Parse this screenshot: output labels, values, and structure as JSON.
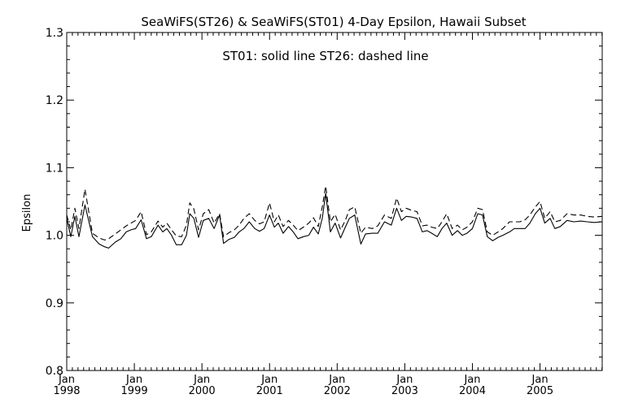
{
  "chart_data": {
    "type": "line",
    "title": "SeaWiFS(ST26) & SeaWiFS(ST01) 4-Day Epsilon, Hawaii Subset",
    "annotation": "ST01: solid line   ST26: dashed line",
    "xlabel": "",
    "ylabel": "Epsilon",
    "ylim": [
      0.8,
      1.3
    ],
    "xlim": [
      1998.0,
      2005.92
    ],
    "yticks": [
      "0.8",
      "0.9",
      "1.0",
      "1.1",
      "1.2",
      "1.3"
    ],
    "xticks": [
      {
        "month": "Jan",
        "year": "1998",
        "value": 1998
      },
      {
        "month": "Jan",
        "year": "1999",
        "value": 1999
      },
      {
        "month": "Jan",
        "year": "2000",
        "value": 2000
      },
      {
        "month": "Jan",
        "year": "2001",
        "value": 2001
      },
      {
        "month": "Jan",
        "year": "2002",
        "value": 2002
      },
      {
        "month": "Jan",
        "year": "2003",
        "value": 2003
      },
      {
        "month": "Jan",
        "year": "2004",
        "value": 2004
      },
      {
        "month": "Jan",
        "year": "2005",
        "value": 2005
      }
    ],
    "grid": false,
    "series": [
      {
        "name": "ST01",
        "style": "solid",
        "points": [
          [
            1998.0,
            1.025
          ],
          [
            1998.06,
            0.998
          ],
          [
            1998.12,
            1.028
          ],
          [
            1998.18,
            0.998
          ],
          [
            1998.27,
            1.045
          ],
          [
            1998.38,
            0.998
          ],
          [
            1998.48,
            0.987
          ],
          [
            1998.56,
            0.983
          ],
          [
            1998.62,
            0.981
          ],
          [
            1998.72,
            0.99
          ],
          [
            1998.8,
            0.995
          ],
          [
            1998.88,
            1.005
          ],
          [
            1998.95,
            1.008
          ],
          [
            1999.02,
            1.01
          ],
          [
            1999.1,
            1.023
          ],
          [
            1999.18,
            0.995
          ],
          [
            1999.25,
            0.998
          ],
          [
            1999.35,
            1.015
          ],
          [
            1999.42,
            1.005
          ],
          [
            1999.48,
            1.01
          ],
          [
            1999.55,
            1.0
          ],
          [
            1999.62,
            0.986
          ],
          [
            1999.7,
            0.986
          ],
          [
            1999.77,
            1.0
          ],
          [
            1999.82,
            1.032
          ],
          [
            1999.88,
            1.025
          ],
          [
            1999.95,
            0.997
          ],
          [
            2000.02,
            1.022
          ],
          [
            2000.1,
            1.025
          ],
          [
            2000.18,
            1.01
          ],
          [
            2000.26,
            1.03
          ],
          [
            2000.32,
            0.988
          ],
          [
            2000.4,
            0.994
          ],
          [
            2000.48,
            0.997
          ],
          [
            2000.55,
            1.005
          ],
          [
            2000.62,
            1.01
          ],
          [
            2000.7,
            1.02
          ],
          [
            2000.78,
            1.01
          ],
          [
            2000.85,
            1.006
          ],
          [
            2000.92,
            1.01
          ],
          [
            2001.0,
            1.03
          ],
          [
            2001.07,
            1.012
          ],
          [
            2001.13,
            1.018
          ],
          [
            2001.2,
            1.003
          ],
          [
            2001.28,
            1.013
          ],
          [
            2001.35,
            1.005
          ],
          [
            2001.42,
            0.995
          ],
          [
            2001.5,
            0.998
          ],
          [
            2001.58,
            1.0
          ],
          [
            2001.65,
            1.012
          ],
          [
            2001.72,
            1.002
          ],
          [
            2001.78,
            1.025
          ],
          [
            2001.83,
            1.062
          ],
          [
            2001.9,
            1.005
          ],
          [
            2001.97,
            1.018
          ],
          [
            2002.05,
            0.996
          ],
          [
            2002.12,
            1.012
          ],
          [
            2002.18,
            1.025
          ],
          [
            2002.26,
            1.03
          ],
          [
            2002.35,
            0.987
          ],
          [
            2002.42,
            1.002
          ],
          [
            2002.52,
            1.003
          ],
          [
            2002.6,
            1.003
          ],
          [
            2002.7,
            1.02
          ],
          [
            2002.8,
            1.015
          ],
          [
            2002.88,
            1.04
          ],
          [
            2002.95,
            1.022
          ],
          [
            2003.02,
            1.028
          ],
          [
            2003.1,
            1.027
          ],
          [
            2003.18,
            1.025
          ],
          [
            2003.26,
            1.005
          ],
          [
            2003.33,
            1.007
          ],
          [
            2003.4,
            1.003
          ],
          [
            2003.48,
            0.998
          ],
          [
            2003.55,
            1.01
          ],
          [
            2003.62,
            1.018
          ],
          [
            2003.7,
            1.0
          ],
          [
            2003.78,
            1.007
          ],
          [
            2003.85,
            1.0
          ],
          [
            2003.92,
            1.003
          ],
          [
            2004.0,
            1.01
          ],
          [
            2004.08,
            1.032
          ],
          [
            2004.15,
            1.03
          ],
          [
            2004.22,
            0.998
          ],
          [
            2004.3,
            0.992
          ],
          [
            2004.38,
            0.997
          ],
          [
            2004.45,
            1.0
          ],
          [
            2004.55,
            1.005
          ],
          [
            2004.62,
            1.01
          ],
          [
            2004.7,
            1.01
          ],
          [
            2004.78,
            1.01
          ],
          [
            2004.85,
            1.018
          ],
          [
            2004.93,
            1.032
          ],
          [
            2005.0,
            1.04
          ],
          [
            2005.07,
            1.018
          ],
          [
            2005.15,
            1.025
          ],
          [
            2005.22,
            1.01
          ],
          [
            2005.3,
            1.013
          ],
          [
            2005.4,
            1.022
          ],
          [
            2005.5,
            1.02
          ],
          [
            2005.6,
            1.021
          ],
          [
            2005.7,
            1.02
          ],
          [
            2005.8,
            1.019
          ],
          [
            2005.92,
            1.02
          ]
        ]
      },
      {
        "name": "ST26",
        "style": "dashed",
        "points": [
          [
            1998.0,
            1.03
          ],
          [
            1998.06,
            1.008
          ],
          [
            1998.12,
            1.04
          ],
          [
            1998.18,
            1.01
          ],
          [
            1998.27,
            1.068
          ],
          [
            1998.38,
            1.003
          ],
          [
            1998.48,
            0.996
          ],
          [
            1998.56,
            0.993
          ],
          [
            1998.62,
            0.995
          ],
          [
            1998.72,
            1.002
          ],
          [
            1998.8,
            1.008
          ],
          [
            1998.88,
            1.014
          ],
          [
            1998.95,
            1.018
          ],
          [
            1999.02,
            1.022
          ],
          [
            1999.1,
            1.035
          ],
          [
            1999.18,
            1.001
          ],
          [
            1999.25,
            1.005
          ],
          [
            1999.35,
            1.021
          ],
          [
            1999.42,
            1.012
          ],
          [
            1999.48,
            1.018
          ],
          [
            1999.55,
            1.008
          ],
          [
            1999.62,
            0.999
          ],
          [
            1999.7,
            0.998
          ],
          [
            1999.77,
            1.015
          ],
          [
            1999.82,
            1.048
          ],
          [
            1999.88,
            1.039
          ],
          [
            1999.95,
            1.008
          ],
          [
            2000.02,
            1.032
          ],
          [
            2000.1,
            1.038
          ],
          [
            2000.18,
            1.018
          ],
          [
            2000.26,
            1.032
          ],
          [
            2000.32,
            0.998
          ],
          [
            2000.4,
            1.004
          ],
          [
            2000.48,
            1.008
          ],
          [
            2000.55,
            1.015
          ],
          [
            2000.62,
            1.025
          ],
          [
            2000.7,
            1.032
          ],
          [
            2000.78,
            1.022
          ],
          [
            2000.85,
            1.017
          ],
          [
            2000.92,
            1.02
          ],
          [
            2001.0,
            1.048
          ],
          [
            2001.07,
            1.02
          ],
          [
            2001.13,
            1.03
          ],
          [
            2001.2,
            1.013
          ],
          [
            2001.28,
            1.022
          ],
          [
            2001.35,
            1.015
          ],
          [
            2001.42,
            1.007
          ],
          [
            2001.5,
            1.012
          ],
          [
            2001.58,
            1.018
          ],
          [
            2001.65,
            1.026
          ],
          [
            2001.72,
            1.013
          ],
          [
            2001.78,
            1.042
          ],
          [
            2001.83,
            1.073
          ],
          [
            2001.9,
            1.02
          ],
          [
            2001.97,
            1.031
          ],
          [
            2002.05,
            1.008
          ],
          [
            2002.12,
            1.022
          ],
          [
            2002.18,
            1.038
          ],
          [
            2002.26,
            1.042
          ],
          [
            2002.35,
            1.003
          ],
          [
            2002.42,
            1.012
          ],
          [
            2002.52,
            1.01
          ],
          [
            2002.6,
            1.014
          ],
          [
            2002.7,
            1.03
          ],
          [
            2002.8,
            1.025
          ],
          [
            2002.88,
            1.055
          ],
          [
            2002.95,
            1.035
          ],
          [
            2003.02,
            1.04
          ],
          [
            2003.1,
            1.037
          ],
          [
            2003.18,
            1.035
          ],
          [
            2003.26,
            1.014
          ],
          [
            2003.33,
            1.015
          ],
          [
            2003.4,
            1.012
          ],
          [
            2003.48,
            1.01
          ],
          [
            2003.55,
            1.02
          ],
          [
            2003.62,
            1.032
          ],
          [
            2003.7,
            1.01
          ],
          [
            2003.78,
            1.015
          ],
          [
            2003.85,
            1.008
          ],
          [
            2003.92,
            1.012
          ],
          [
            2004.0,
            1.02
          ],
          [
            2004.08,
            1.04
          ],
          [
            2004.15,
            1.038
          ],
          [
            2004.22,
            1.005
          ],
          [
            2004.3,
            1.0
          ],
          [
            2004.38,
            1.005
          ],
          [
            2004.45,
            1.01
          ],
          [
            2004.55,
            1.02
          ],
          [
            2004.62,
            1.02
          ],
          [
            2004.7,
            1.02
          ],
          [
            2004.78,
            1.023
          ],
          [
            2004.85,
            1.03
          ],
          [
            2004.93,
            1.042
          ],
          [
            2005.0,
            1.05
          ],
          [
            2005.07,
            1.025
          ],
          [
            2005.15,
            1.035
          ],
          [
            2005.22,
            1.02
          ],
          [
            2005.3,
            1.022
          ],
          [
            2005.4,
            1.032
          ],
          [
            2005.5,
            1.03
          ],
          [
            2005.6,
            1.03
          ],
          [
            2005.7,
            1.028
          ],
          [
            2005.8,
            1.027
          ],
          [
            2005.92,
            1.028
          ]
        ]
      }
    ]
  }
}
